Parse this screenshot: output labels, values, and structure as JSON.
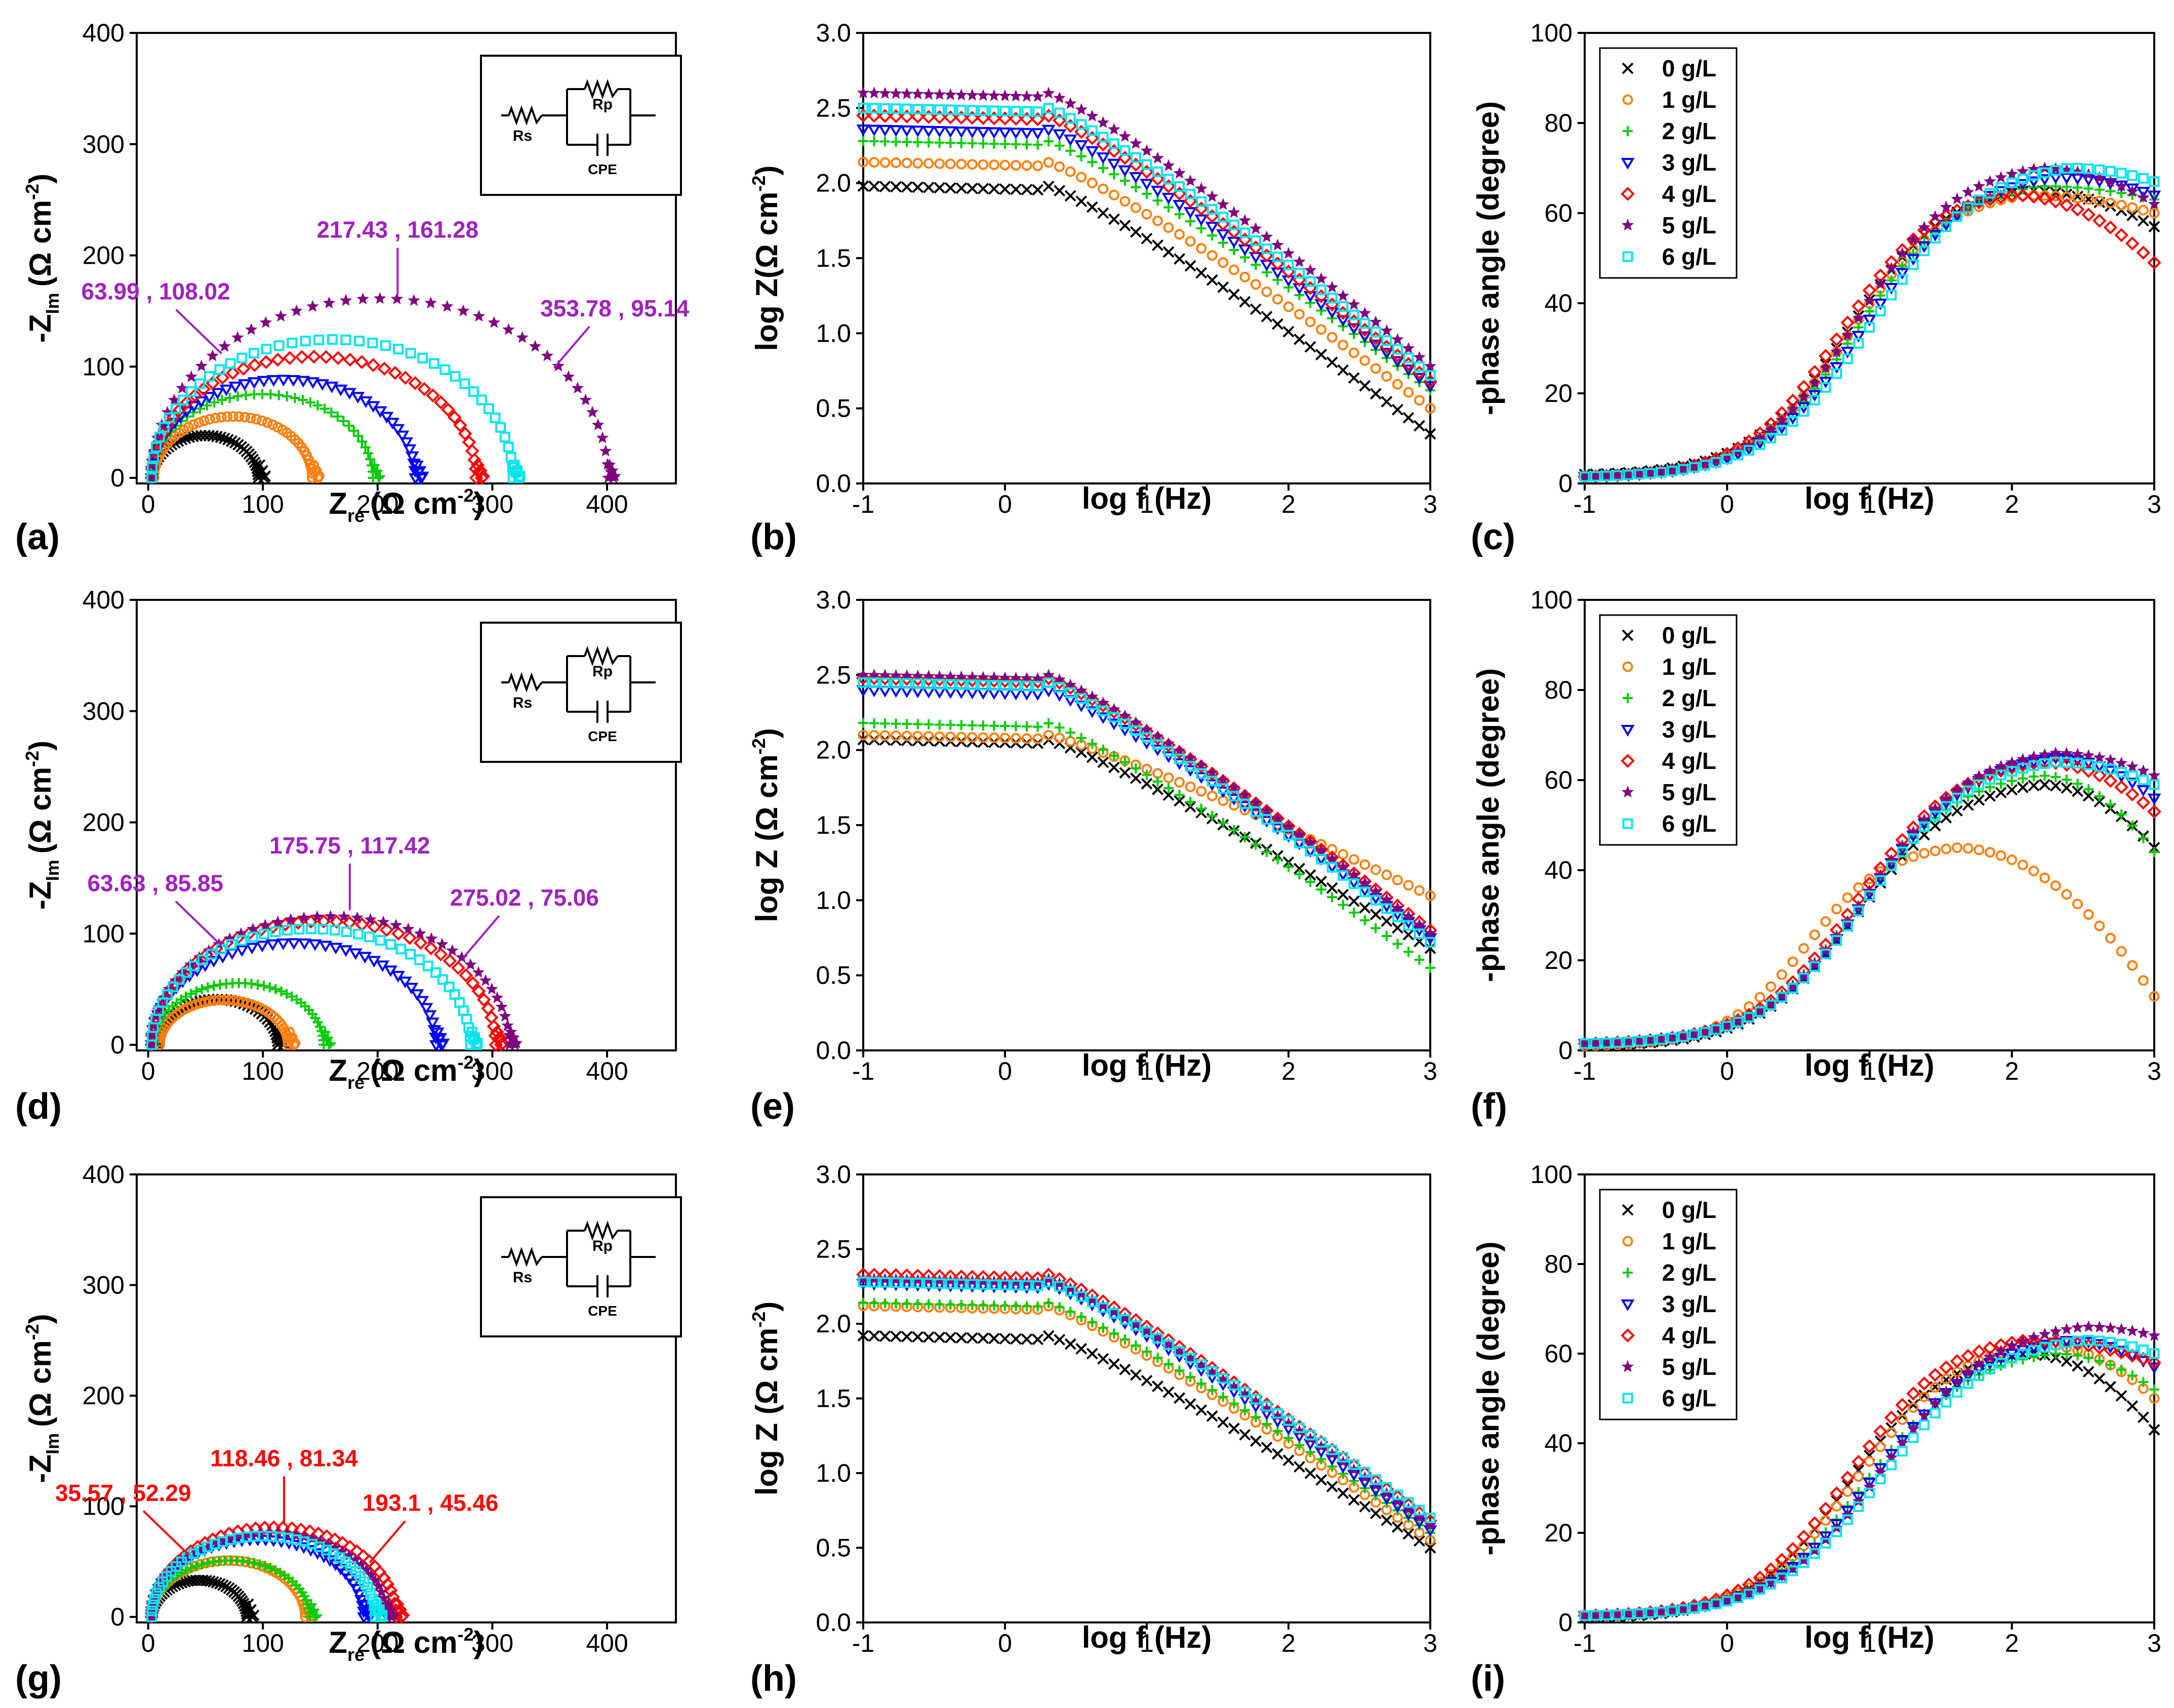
{
  "colors": {
    "0 g/L": "#000000",
    "1 g/L": "#ff7f0e",
    "2 g/L": "#00cc00",
    "3 g/L": "#0000ff",
    "4 g/L": "#ff0000",
    "5 g/L": "#800080",
    "6 g/L": "#00e5ee",
    "annotation_purple": "#a020c0",
    "annotation_red": "#ff0000"
  },
  "legend_labels": [
    "0 g/L",
    "1 g/L",
    "2 g/L",
    "3 g/L",
    "4 g/L",
    "5 g/L",
    "6 g/L"
  ],
  "circuit_labels": {
    "rs": "Rs",
    "rp": "Rp",
    "cpe": "CPE"
  },
  "chart_data": [
    {
      "id": "a",
      "panel_label": "(a)",
      "type": "scatter",
      "kind": "nyquist",
      "xlabel": "Z",
      "xlabel_sub": "re",
      "xlabel_unit": "(Ω cm",
      "xlabel_sup": "-2",
      "xlabel_end": ")",
      "ylabel": "-Z",
      "ylabel_sub": "Im",
      "ylabel_unit": "(Ω cm",
      "ylabel_sup": "-2",
      "ylabel_end": ")",
      "xlim": [
        -10,
        460
      ],
      "ylim": [
        -5,
        400
      ],
      "xticks": [
        0,
        100,
        200,
        300,
        400
      ],
      "yticks": [
        0,
        100,
        200,
        300,
        400
      ],
      "series": [
        {
          "name": "0 g/L",
          "rs": 3,
          "rp": 93,
          "depression": 0.82
        },
        {
          "name": "1 g/L",
          "rs": 5,
          "rp": 138,
          "depression": 0.8
        },
        {
          "name": "2 g/L",
          "rs": 3,
          "rp": 193,
          "depression": 0.78
        },
        {
          "name": "3 g/L",
          "rs": 3,
          "rp": 230,
          "depression": 0.77
        },
        {
          "name": "4 g/L",
          "rs": 3,
          "rp": 283,
          "depression": 0.77
        },
        {
          "name": "5 g/L",
          "rs": 3,
          "rp": 398,
          "depression": 0.81
        },
        {
          "name": "6 g/L",
          "rs": 3,
          "rp": 315,
          "depression": 0.79
        }
      ],
      "annotations": [
        {
          "text": "63.99 , 108.02",
          "x": 63.99,
          "y": 108.02,
          "color": "#a020c0"
        },
        {
          "text": "217.43 , 161.28",
          "x": 217.43,
          "y": 161.28,
          "color": "#a020c0"
        },
        {
          "text": "353.78 , 95.14",
          "x": 353.78,
          "y": 95.14,
          "color": "#a020c0"
        }
      ]
    },
    {
      "id": "b",
      "panel_label": "(b)",
      "type": "scatter",
      "kind": "bode_mod",
      "xlabel": "log f (Hz)",
      "ylabel": "log Z(Ω cm",
      "ylabel_sup": "-2",
      "ylabel_end": ")",
      "xlim": [
        -1,
        3
      ],
      "ylim": [
        0,
        3
      ],
      "xticks": [
        -1,
        0,
        1,
        2,
        3
      ],
      "yticks": [
        0.0,
        0.5,
        1.0,
        1.5,
        2.0,
        2.5,
        3.0
      ],
      "series": [
        {
          "name": "0 g/L",
          "plateau": 1.98,
          "end": 0.33
        },
        {
          "name": "1 g/L",
          "plateau": 2.14,
          "end": 0.5
        },
        {
          "name": "2 g/L",
          "plateau": 2.28,
          "end": 0.62
        },
        {
          "name": "3 g/L",
          "plateau": 2.36,
          "end": 0.65
        },
        {
          "name": "4 g/L",
          "plateau": 2.45,
          "end": 0.68
        },
        {
          "name": "5 g/L",
          "plateau": 2.6,
          "end": 0.78
        },
        {
          "name": "6 g/L",
          "plateau": 2.5,
          "end": 0.72
        }
      ]
    },
    {
      "id": "c",
      "panel_label": "(c)",
      "type": "scatter",
      "kind": "bode_phase",
      "xlabel": "log f (Hz)",
      "ylabel": "-phase angle (degree)",
      "xlim": [
        -1,
        3
      ],
      "ylim": [
        0,
        100
      ],
      "xticks": [
        -1,
        0,
        1,
        2,
        3
      ],
      "yticks": [
        0,
        20,
        40,
        60,
        80,
        100
      ],
      "legend": true,
      "series": [
        {
          "name": "0 g/L",
          "peak": 65,
          "peakX": 2.1,
          "start": 2,
          "end": 57
        },
        {
          "name": "1 g/L",
          "peak": 64,
          "peakX": 2.1,
          "start": 1.5,
          "end": 60
        },
        {
          "name": "2 g/L",
          "peak": 66,
          "peakX": 2.2,
          "start": 1.5,
          "end": 63
        },
        {
          "name": "3 g/L",
          "peak": 68,
          "peakX": 2.3,
          "start": 1.5,
          "end": 64
        },
        {
          "name": "4 g/L",
          "peak": 64,
          "peakX": 2.0,
          "start": 1.5,
          "end": 49
        },
        {
          "name": "5 g/L",
          "peak": 70,
          "peakX": 2.2,
          "start": 1.5,
          "end": 62
        },
        {
          "name": "6 g/L",
          "peak": 70,
          "peakX": 2.4,
          "start": 1.5,
          "end": 67
        }
      ]
    },
    {
      "id": "d",
      "panel_label": "(d)",
      "type": "scatter",
      "kind": "nyquist",
      "xlabel": "Z",
      "xlabel_sub": "re",
      "xlabel_unit": "(Ω cm",
      "xlabel_sup": "-2",
      "xlabel_end": ")",
      "ylabel": "-Z",
      "ylabel_sub": "Im",
      "ylabel_unit": "(Ω cm",
      "ylabel_sup": "-2",
      "ylabel_end": ")",
      "xlim": [
        -10,
        460
      ],
      "ylim": [
        -5,
        400
      ],
      "xticks": [
        0,
        100,
        200,
        300,
        400
      ],
      "yticks": [
        0,
        100,
        200,
        300,
        400
      ],
      "series": [
        {
          "name": "0 g/L",
          "rs": 8,
          "rp": 105,
          "depression": 0.78
        },
        {
          "name": "1 g/L",
          "rs": 10,
          "rp": 112,
          "depression": 0.72
        },
        {
          "name": "2 g/L",
          "rs": 5,
          "rp": 148,
          "depression": 0.75
        },
        {
          "name": "3 g/L",
          "rs": 3,
          "rp": 248,
          "depression": 0.74
        },
        {
          "name": "4 g/L",
          "rs": 3,
          "rp": 300,
          "depression": 0.74
        },
        {
          "name": "5 g/L",
          "rs": 3,
          "rp": 312,
          "depression": 0.74
        },
        {
          "name": "6 g/L",
          "rs": 3,
          "rp": 278,
          "depression": 0.75
        }
      ],
      "annotations": [
        {
          "text": "63.63 , 85.85",
          "x": 63.63,
          "y": 85.85,
          "color": "#a020c0"
        },
        {
          "text": "175.75 , 117.42",
          "x": 175.75,
          "y": 117.42,
          "color": "#a020c0"
        },
        {
          "text": "275.02 , 75.06",
          "x": 275.02,
          "y": 75.06,
          "color": "#a020c0"
        }
      ]
    },
    {
      "id": "e",
      "panel_label": "(e)",
      "type": "scatter",
      "kind": "bode_mod",
      "xlabel": "log f (Hz)",
      "ylabel": "log Z (Ω cm",
      "ylabel_sup": "-2",
      "ylabel_end": ")",
      "xlim": [
        -1,
        3
      ],
      "ylim": [
        0,
        3
      ],
      "xticks": [
        -1,
        0,
        1,
        2,
        3
      ],
      "yticks": [
        0.0,
        0.5,
        1.0,
        1.5,
        2.0,
        2.5,
        3.0
      ],
      "series": [
        {
          "name": "0 g/L",
          "plateau": 2.07,
          "end": 0.68
        },
        {
          "name": "1 g/L",
          "plateau": 2.1,
          "end": 1.03,
          "knee": 1.5
        },
        {
          "name": "2 g/L",
          "plateau": 2.18,
          "end": 0.55
        },
        {
          "name": "3 g/L",
          "plateau": 2.4,
          "end": 0.75
        },
        {
          "name": "4 g/L",
          "plateau": 2.48,
          "end": 0.8
        },
        {
          "name": "5 g/L",
          "plateau": 2.5,
          "end": 0.78
        },
        {
          "name": "6 g/L",
          "plateau": 2.45,
          "end": 0.72
        }
      ]
    },
    {
      "id": "f",
      "panel_label": "(f)",
      "type": "scatter",
      "kind": "bode_phase",
      "xlabel": "log f (Hz)",
      "ylabel": "-phase angle (degree)",
      "xlim": [
        -1,
        3
      ],
      "ylim": [
        0,
        100
      ],
      "xticks": [
        -1,
        0,
        1,
        2,
        3
      ],
      "yticks": [
        0,
        20,
        40,
        60,
        80,
        100
      ],
      "legend": true,
      "series": [
        {
          "name": "0 g/L",
          "peak": 59,
          "peakX": 2.2,
          "start": 1,
          "end": 45
        },
        {
          "name": "1 g/L",
          "peak": 45,
          "peakX": 1.6,
          "start": 1,
          "end": 12
        },
        {
          "name": "2 g/L",
          "peak": 61,
          "peakX": 2.2,
          "start": 1.5,
          "end": 44
        },
        {
          "name": "3 g/L",
          "peak": 65,
          "peakX": 2.3,
          "start": 1.5,
          "end": 56
        },
        {
          "name": "4 g/L",
          "peak": 64,
          "peakX": 2.2,
          "start": 1.5,
          "end": 53
        },
        {
          "name": "5 g/L",
          "peak": 66,
          "peakX": 2.3,
          "start": 1.5,
          "end": 61
        },
        {
          "name": "6 g/L",
          "peak": 64,
          "peakX": 2.3,
          "start": 1.5,
          "end": 59
        }
      ]
    },
    {
      "id": "g",
      "panel_label": "(g)",
      "type": "scatter",
      "kind": "nyquist",
      "xlabel": "Z",
      "xlabel_sub": "re",
      "xlabel_unit": "(Ω cm",
      "xlabel_sup": "-2",
      "xlabel_end": ")",
      "ylabel": "-Z",
      "ylabel_sub": "Im",
      "ylabel_unit": "(Ω cm",
      "ylabel_sup": "-2",
      "ylabel_end": ")",
      "xlim": [
        -10,
        460
      ],
      "ylim": [
        -5,
        400
      ],
      "xticks": [
        0,
        100,
        200,
        300,
        400
      ],
      "yticks": [
        0,
        100,
        200,
        300,
        400
      ],
      "series": [
        {
          "name": "0 g/L",
          "rs": 3,
          "rp": 83,
          "depression": 0.8
        },
        {
          "name": "1 g/L",
          "rs": 3,
          "rp": 134,
          "depression": 0.76
        },
        {
          "name": "2 g/L",
          "rs": 3,
          "rp": 138,
          "depression": 0.74
        },
        {
          "name": "3 g/L",
          "rs": 3,
          "rp": 185,
          "depression": 0.76
        },
        {
          "name": "4 g/L",
          "rs": 3,
          "rp": 213,
          "depression": 0.76
        },
        {
          "name": "5 g/L",
          "rs": 3,
          "rp": 205,
          "depression": 0.74
        },
        {
          "name": "6 g/L",
          "rs": 3,
          "rp": 195,
          "depression": 0.75
        }
      ],
      "annotations": [
        {
          "text": "35.57 , 52.29",
          "x": 35.57,
          "y": 52.29,
          "color": "#ff0000"
        },
        {
          "text": "118.46 , 81.34",
          "x": 118.46,
          "y": 81.34,
          "color": "#ff0000"
        },
        {
          "text": "193.1 , 45.46",
          "x": 193.1,
          "y": 45.46,
          "color": "#ff0000"
        }
      ]
    },
    {
      "id": "h",
      "panel_label": "(h)",
      "type": "scatter",
      "kind": "bode_mod",
      "xlabel": "log f (Hz)",
      "ylabel": "log Z (Ω cm",
      "ylabel_sup": "-2",
      "ylabel_end": ")",
      "xlim": [
        -1,
        3
      ],
      "ylim": [
        0,
        3
      ],
      "xticks": [
        -1,
        0,
        1,
        2,
        3
      ],
      "yticks": [
        0.0,
        0.5,
        1.0,
        1.5,
        2.0,
        2.5,
        3.0
      ],
      "series": [
        {
          "name": "0 g/L",
          "plateau": 1.92,
          "end": 0.5
        },
        {
          "name": "1 g/L",
          "plateau": 2.12,
          "end": 0.55
        },
        {
          "name": "2 g/L",
          "plateau": 2.14,
          "end": 0.6
        },
        {
          "name": "3 g/L",
          "plateau": 2.27,
          "end": 0.62
        },
        {
          "name": "4 g/L",
          "plateau": 2.33,
          "end": 0.68
        },
        {
          "name": "5 g/L",
          "plateau": 2.3,
          "end": 0.65
        },
        {
          "name": "6 g/L",
          "plateau": 2.28,
          "end": 0.7
        }
      ]
    },
    {
      "id": "i",
      "panel_label": "(i)",
      "type": "scatter",
      "kind": "bode_phase",
      "xlabel": "log f (Hz)",
      "ylabel": "-phase angle (degree)",
      "xlim": [
        -1,
        3
      ],
      "ylim": [
        0,
        100
      ],
      "xticks": [
        -1,
        0,
        1,
        2,
        3
      ],
      "yticks": [
        0,
        20,
        40,
        60,
        80,
        100
      ],
      "legend": true,
      "series": [
        {
          "name": "0 g/L",
          "peak": 60,
          "peakX": 2.1,
          "start": 1,
          "end": 43
        },
        {
          "name": "1 g/L",
          "peak": 62,
          "peakX": 2.2,
          "start": 1.5,
          "end": 50
        },
        {
          "name": "2 g/L",
          "peak": 60,
          "peakX": 2.3,
          "start": 1.5,
          "end": 52
        },
        {
          "name": "3 g/L",
          "peak": 63,
          "peakX": 2.4,
          "start": 1.5,
          "end": 57
        },
        {
          "name": "4 g/L",
          "peak": 63,
          "peakX": 2.1,
          "start": 1.5,
          "end": 58
        },
        {
          "name": "5 g/L",
          "peak": 66,
          "peakX": 2.5,
          "start": 1.5,
          "end": 64
        },
        {
          "name": "6 g/L",
          "peak": 63,
          "peakX": 2.5,
          "start": 1.5,
          "end": 60
        }
      ]
    }
  ]
}
